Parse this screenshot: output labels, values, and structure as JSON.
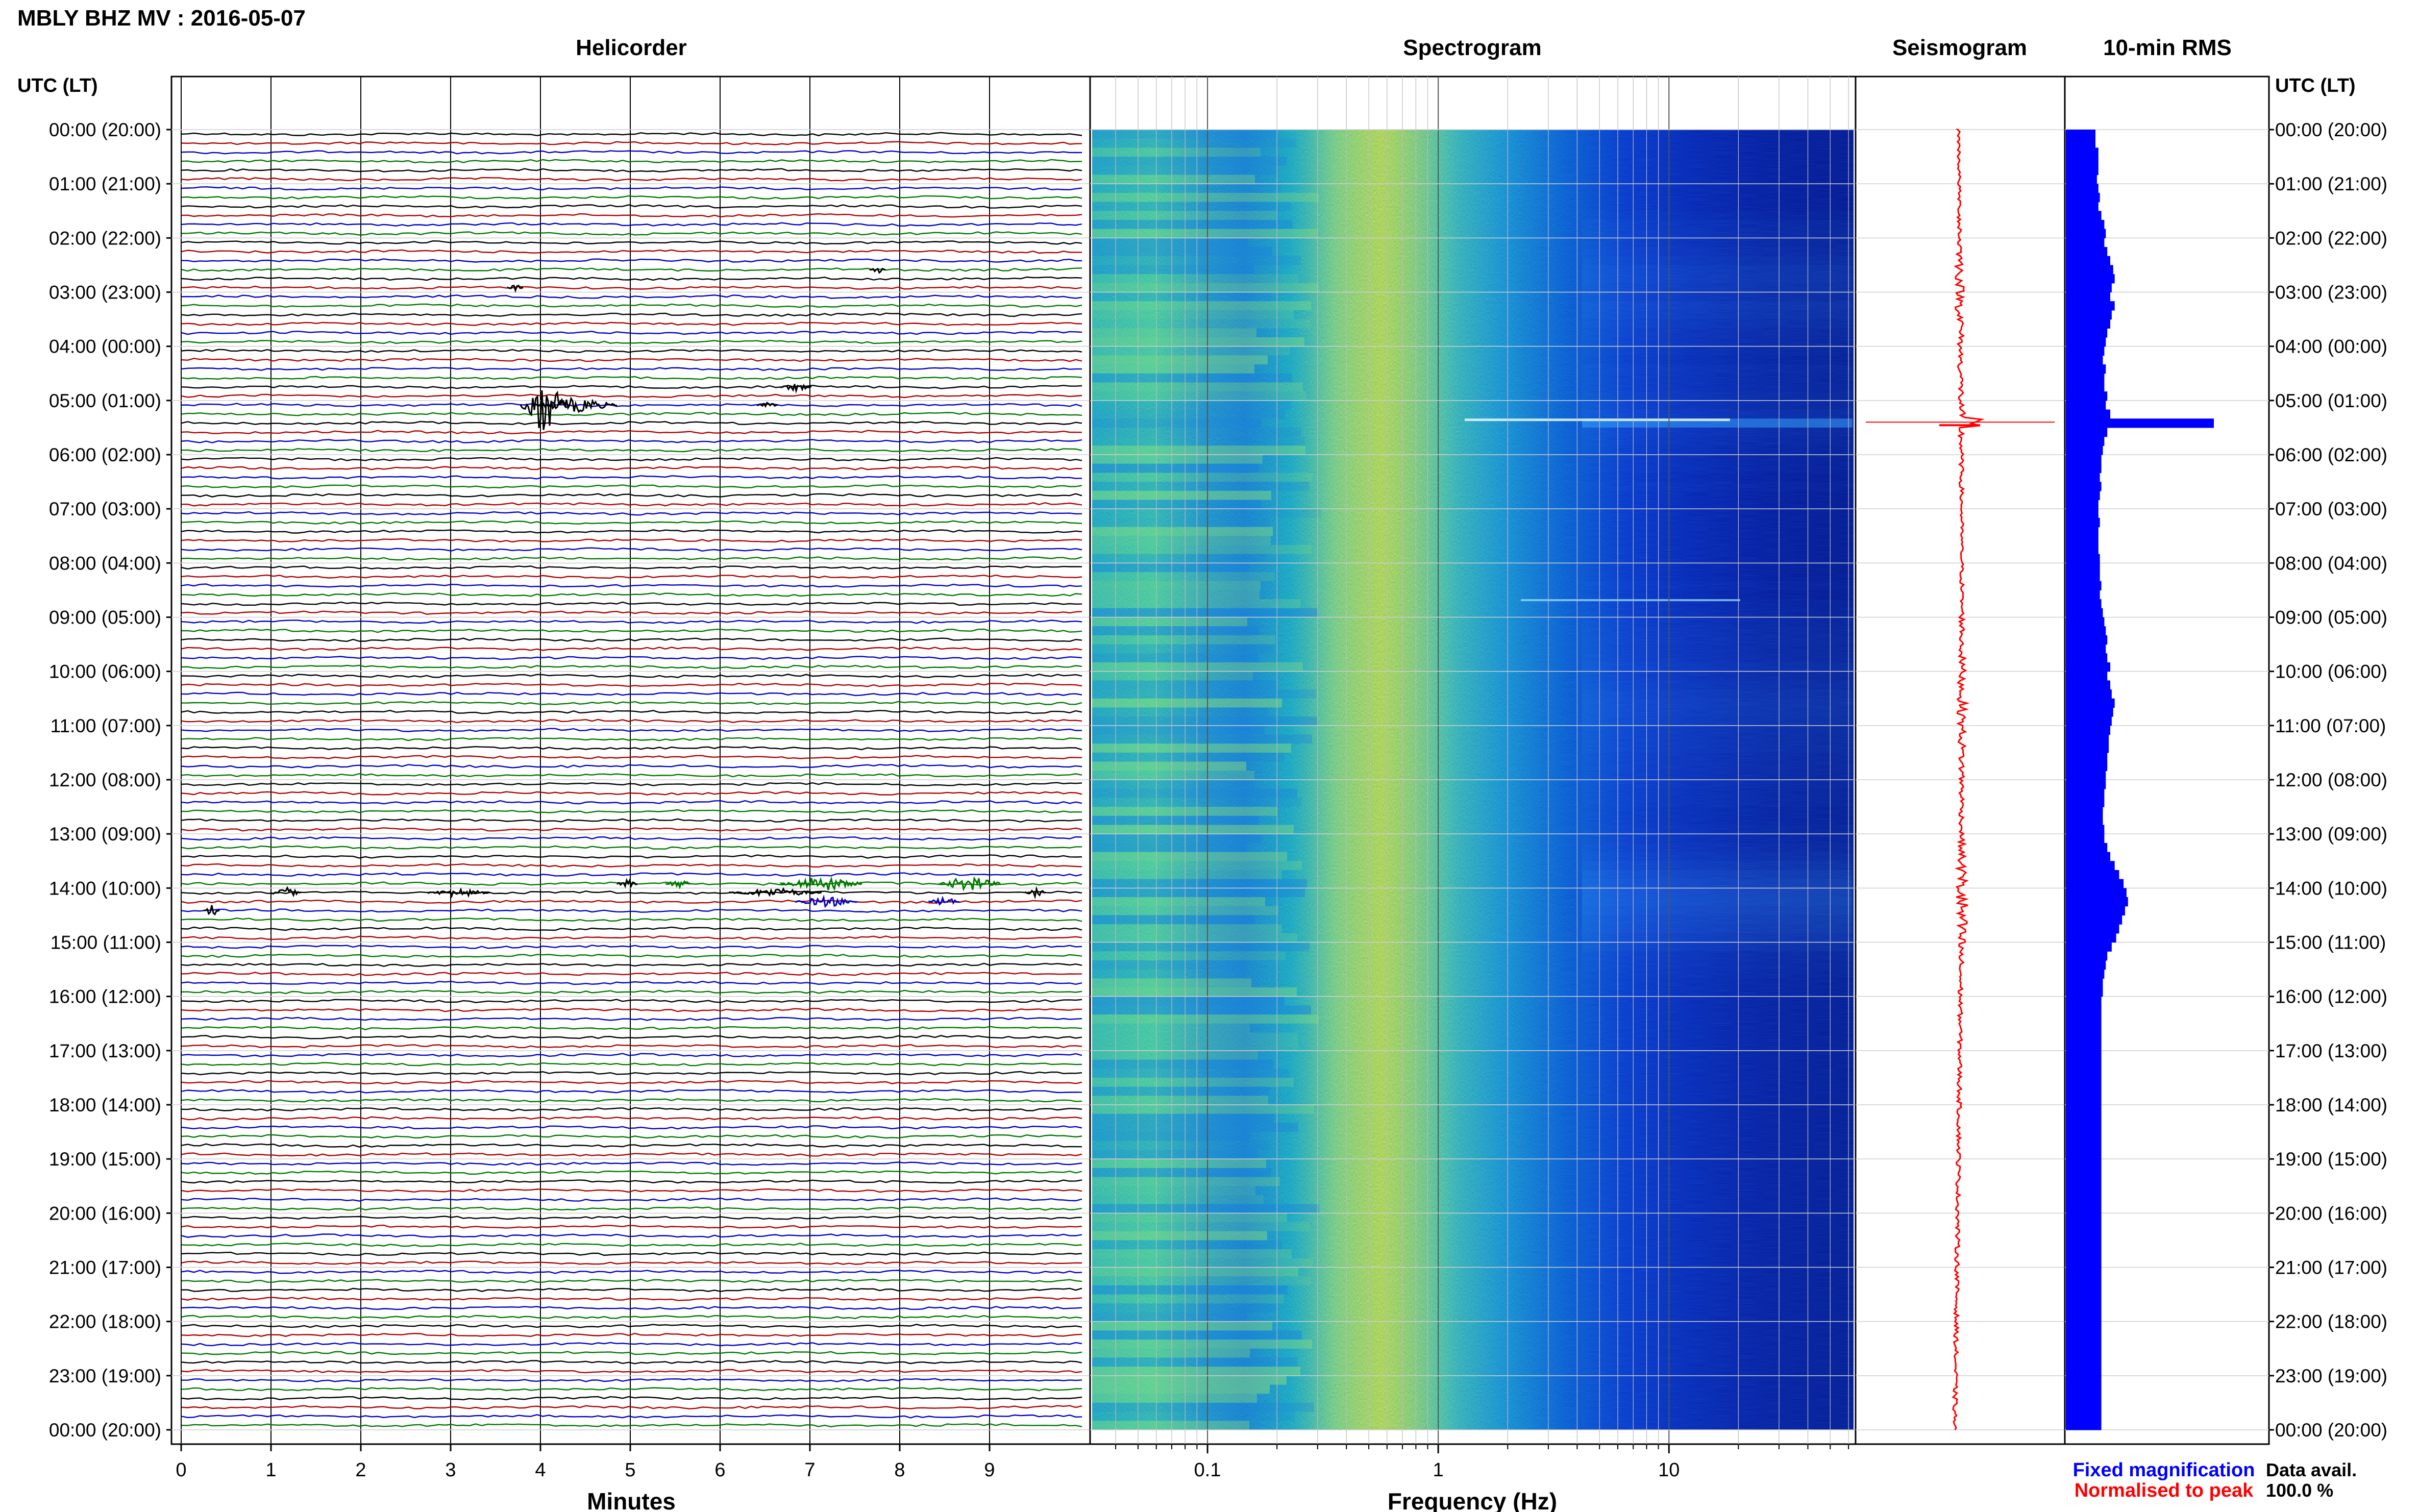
{
  "header": {
    "title": "MBLY BHZ MV : 2016-05-07",
    "utc_label_left": "UTC (LT)",
    "utc_label_right": "UTC (LT)"
  },
  "panels": {
    "helicorder": "Helicorder",
    "spectrogram": "Spectrogram",
    "seismogram": "Seismogram",
    "rms": "10-min RMS"
  },
  "axes": {
    "minutes_label": "Minutes",
    "frequency_label": "Frequency (Hz)",
    "minute_ticks": [
      "0",
      "1",
      "2",
      "3",
      "4",
      "5",
      "6",
      "7",
      "8",
      "9"
    ],
    "frequency_ticks": [
      "0.1",
      "1",
      "10"
    ]
  },
  "time_labels": [
    "00:00 (20:00)",
    "01:00 (21:00)",
    "02:00 (22:00)",
    "03:00 (23:00)",
    "04:00 (00:00)",
    "05:00 (01:00)",
    "06:00 (02:00)",
    "07:00 (03:00)",
    "08:00 (04:00)",
    "09:00 (05:00)",
    "10:00 (06:00)",
    "11:00 (07:00)",
    "12:00 (08:00)",
    "13:00 (09:00)",
    "14:00 (10:00)",
    "15:00 (11:00)",
    "16:00 (12:00)",
    "17:00 (13:00)",
    "18:00 (14:00)",
    "19:00 (15:00)",
    "20:00 (16:00)",
    "21:00 (17:00)",
    "22:00 (18:00)",
    "23:00 (19:00)",
    "00:00 (20:00)"
  ],
  "legend": {
    "fixed_magnification": "Fixed magnification",
    "normalised_to_peak": "Normalised to peak",
    "data_avail_label": "Data avail.",
    "data_avail_value": "100.0 %"
  },
  "colors": {
    "trace_cycle": [
      "#000000",
      "#b00000",
      "#0000c8",
      "#007800"
    ],
    "seismogram": "#ff0000",
    "rms_bar": "#0000ff",
    "legend_fixed": "#0000ff",
    "legend_peak": "#ff0000"
  },
  "chart_data": {
    "type": "bar",
    "title": "10-min RMS",
    "ylabel": "UTC (LT)",
    "categories": [
      "00:00",
      "00:10",
      "00:20",
      "00:30",
      "00:40",
      "00:50",
      "01:00",
      "01:10",
      "01:20",
      "01:30",
      "01:40",
      "01:50",
      "02:00",
      "02:10",
      "02:20",
      "02:30",
      "02:40",
      "02:50",
      "03:00",
      "03:10",
      "03:20",
      "03:30",
      "03:40",
      "03:50",
      "04:00",
      "04:10",
      "04:20",
      "04:30",
      "04:40",
      "04:50",
      "05:00",
      "05:10",
      "05:20",
      "05:30",
      "05:40",
      "05:50",
      "06:00",
      "06:10",
      "06:20",
      "06:30",
      "06:40",
      "06:50",
      "07:00",
      "07:10",
      "07:20",
      "07:30",
      "07:40",
      "07:50",
      "08:00",
      "08:10",
      "08:20",
      "08:30",
      "08:40",
      "08:50",
      "09:00",
      "09:10",
      "09:20",
      "09:30",
      "09:40",
      "09:50",
      "10:00",
      "10:10",
      "10:20",
      "10:30",
      "10:40",
      "10:50",
      "11:00",
      "11:10",
      "11:20",
      "11:30",
      "11:40",
      "11:50",
      "12:00",
      "12:10",
      "12:20",
      "12:30",
      "12:40",
      "12:50",
      "13:00",
      "13:10",
      "13:20",
      "13:30",
      "13:40",
      "13:50",
      "14:00",
      "14:10",
      "14:20",
      "14:30",
      "14:40",
      "14:50",
      "15:00",
      "15:10",
      "15:20",
      "15:30",
      "15:40",
      "15:50",
      "16:00",
      "16:10",
      "16:20",
      "16:30",
      "16:40",
      "16:50",
      "17:00",
      "17:10",
      "17:20",
      "17:30",
      "17:40",
      "17:50",
      "18:00",
      "18:10",
      "18:20",
      "18:30",
      "18:40",
      "18:50",
      "19:00",
      "19:10",
      "19:20",
      "19:30",
      "19:40",
      "19:50",
      "20:00",
      "20:10",
      "20:20",
      "20:30",
      "20:40",
      "20:50",
      "21:00",
      "21:10",
      "21:20",
      "21:30",
      "21:40",
      "21:50",
      "22:00",
      "22:10",
      "22:20",
      "22:30",
      "22:40",
      "22:50",
      "23:00",
      "23:10",
      "23:20",
      "23:30",
      "23:40",
      "23:50"
    ],
    "values": [
      0.2,
      0.2,
      0.22,
      0.22,
      0.22,
      0.21,
      0.22,
      0.23,
      0.22,
      0.24,
      0.26,
      0.27,
      0.26,
      0.28,
      0.3,
      0.32,
      0.33,
      0.31,
      0.3,
      0.33,
      0.31,
      0.3,
      0.28,
      0.27,
      0.26,
      0.25,
      0.27,
      0.26,
      0.26,
      0.28,
      0.27,
      0.3,
      1.0,
      0.28,
      0.26,
      0.25,
      0.24,
      0.24,
      0.23,
      0.24,
      0.23,
      0.22,
      0.22,
      0.23,
      0.22,
      0.22,
      0.22,
      0.23,
      0.23,
      0.23,
      0.24,
      0.23,
      0.24,
      0.25,
      0.26,
      0.27,
      0.28,
      0.27,
      0.28,
      0.3,
      0.28,
      0.3,
      0.31,
      0.33,
      0.32,
      0.31,
      0.3,
      0.29,
      0.29,
      0.28,
      0.28,
      0.27,
      0.27,
      0.26,
      0.26,
      0.25,
      0.25,
      0.26,
      0.26,
      0.28,
      0.3,
      0.33,
      0.36,
      0.39,
      0.41,
      0.42,
      0.4,
      0.38,
      0.36,
      0.34,
      0.31,
      0.28,
      0.27,
      0.26,
      0.25,
      0.25,
      0.24,
      0.24,
      0.24,
      0.24,
      0.24,
      0.24,
      0.24,
      0.24,
      0.24,
      0.24,
      0.24,
      0.24,
      0.24,
      0.24,
      0.24,
      0.24,
      0.24,
      0.24,
      0.24,
      0.24,
      0.24,
      0.24,
      0.24,
      0.24,
      0.24,
      0.24,
      0.24,
      0.24,
      0.24,
      0.24,
      0.24,
      0.24,
      0.24,
      0.24,
      0.24,
      0.24,
      0.24,
      0.24,
      0.24,
      0.24,
      0.24,
      0.24,
      0.24,
      0.24,
      0.24,
      0.24,
      0.24,
      0.24
    ]
  }
}
